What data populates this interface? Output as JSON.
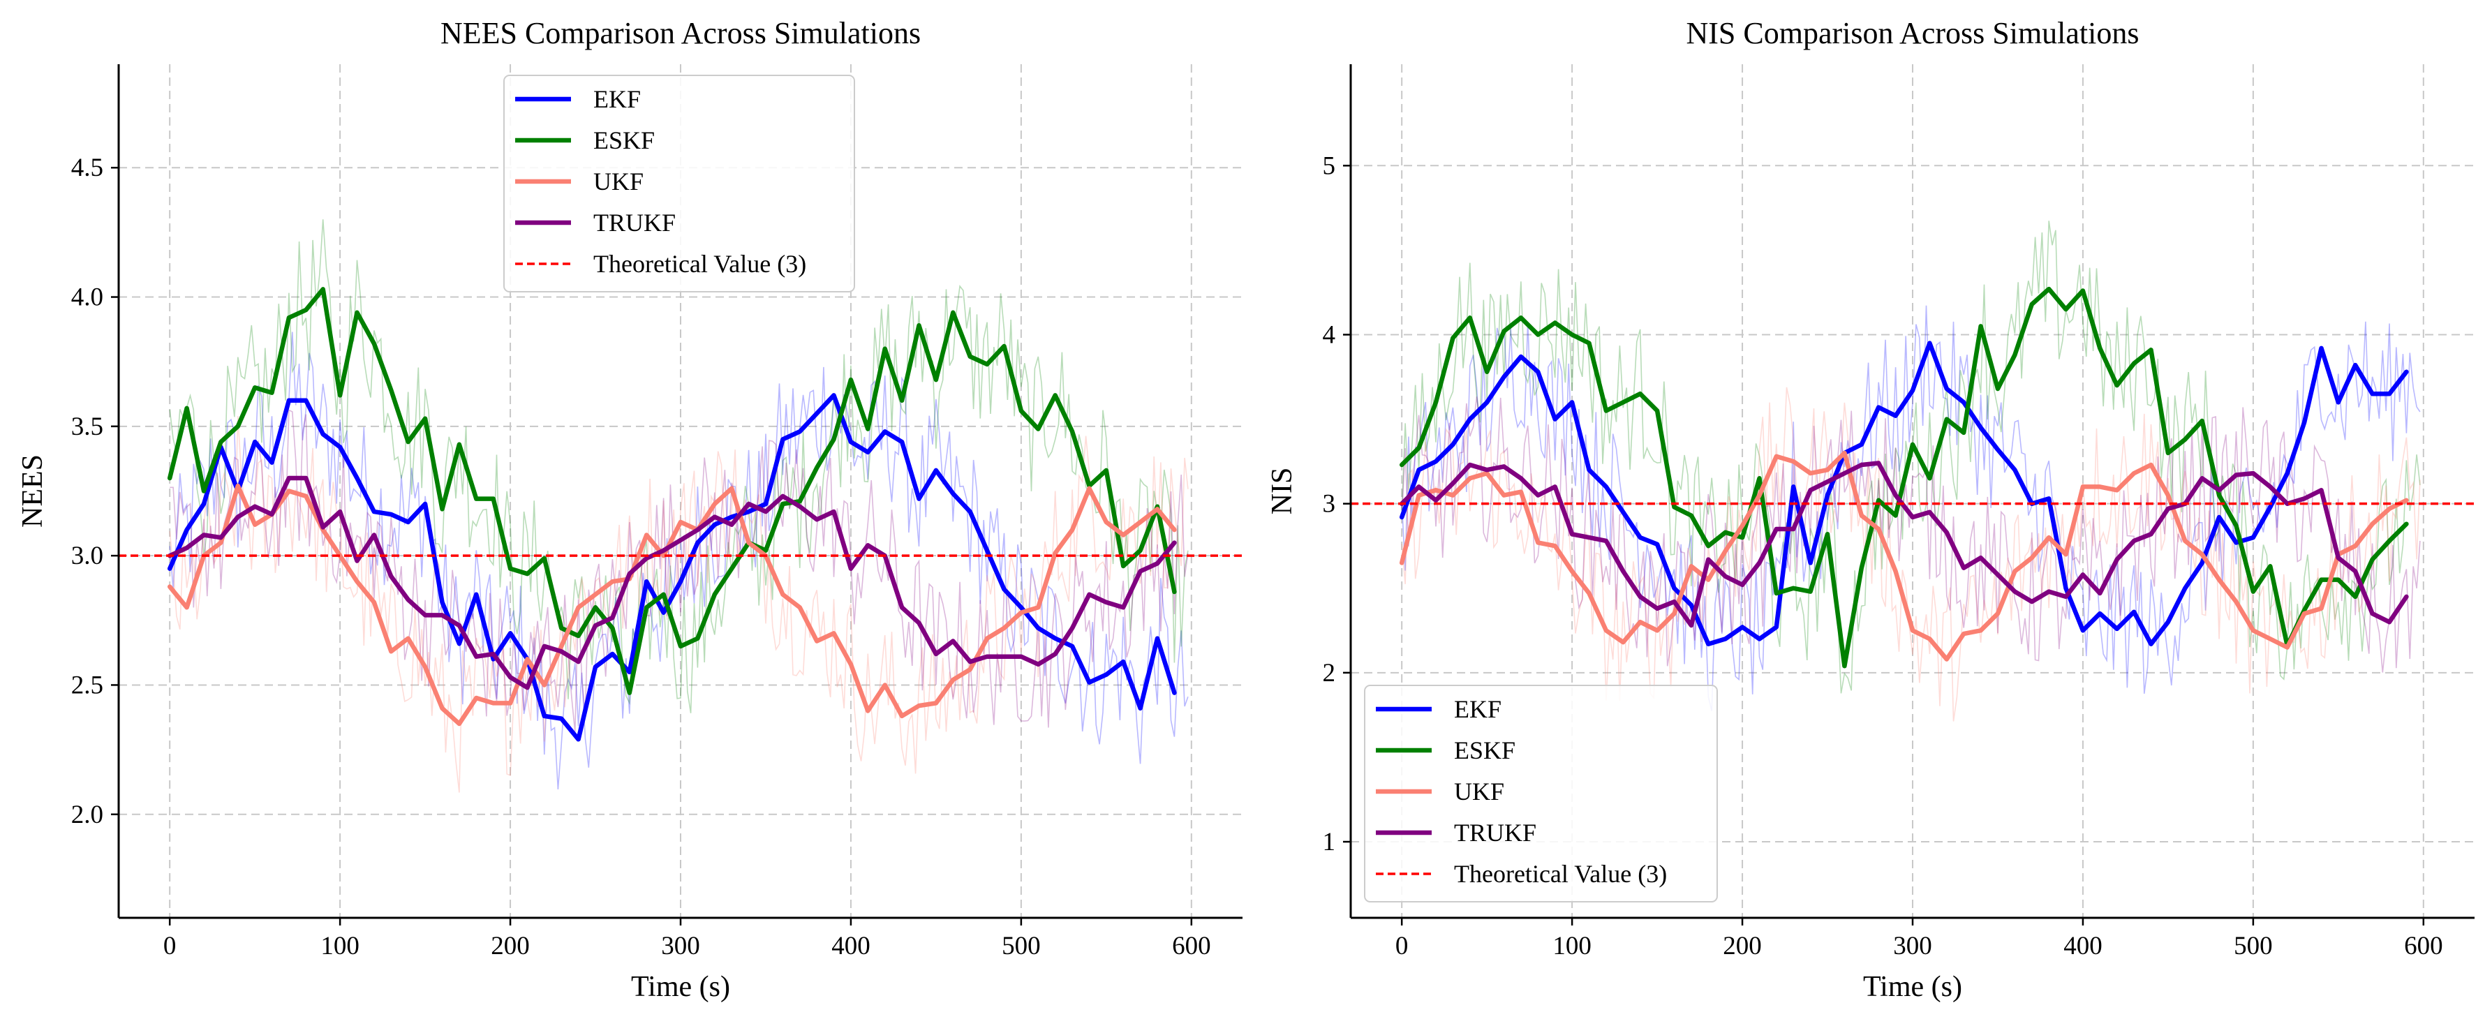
{
  "chart_data": [
    {
      "type": "line",
      "title": "NEES Comparison Across Simulations",
      "xlabel": "Time (s)",
      "ylabel": "NEES",
      "xlim": [
        -30,
        630
      ],
      "ylim": [
        1.6,
        4.9
      ],
      "xticks": [
        0,
        100,
        200,
        300,
        400,
        500,
        600
      ],
      "yticks": [
        2.0,
        2.5,
        3.0,
        3.5,
        4.0,
        4.5
      ],
      "ytick_format": 1,
      "grid": true,
      "legend_position": "top-center",
      "x": [
        0,
        10,
        20,
        30,
        40,
        50,
        60,
        70,
        80,
        90,
        100,
        110,
        120,
        130,
        140,
        150,
        160,
        170,
        180,
        190,
        200,
        210,
        220,
        230,
        240,
        250,
        260,
        270,
        280,
        290,
        300,
        310,
        320,
        330,
        340,
        350,
        360,
        370,
        380,
        390,
        400,
        410,
        420,
        430,
        440,
        450,
        460,
        470,
        480,
        490,
        500,
        510,
        520,
        530,
        540,
        550,
        560,
        570,
        580,
        590
      ],
      "series": [
        {
          "name": "EKF",
          "color": "#0000ff",
          "values": [
            2.95,
            3.1,
            3.2,
            3.42,
            3.25,
            3.44,
            3.36,
            3.6,
            3.6,
            3.47,
            3.42,
            3.3,
            3.17,
            3.16,
            3.13,
            3.2,
            2.82,
            2.66,
            2.85,
            2.6,
            2.7,
            2.6,
            2.38,
            2.37,
            2.29,
            2.57,
            2.62,
            2.55,
            2.9,
            2.78,
            2.9,
            3.05,
            3.12,
            3.15,
            3.17,
            3.2,
            3.45,
            3.48,
            3.55,
            3.62,
            3.44,
            3.4,
            3.48,
            3.44,
            3.22,
            3.33,
            3.24,
            3.17,
            3.02,
            2.87,
            2.8,
            2.72,
            2.68,
            2.65,
            2.51,
            2.54,
            2.59,
            2.41,
            2.68,
            2.47
          ]
        },
        {
          "name": "ESKF",
          "color": "#008000",
          "values": [
            3.3,
            3.57,
            3.25,
            3.44,
            3.5,
            3.65,
            3.63,
            3.92,
            3.95,
            4.03,
            3.62,
            3.94,
            3.82,
            3.64,
            3.44,
            3.53,
            3.18,
            3.43,
            3.22,
            3.22,
            2.95,
            2.93,
            2.99,
            2.72,
            2.69,
            2.8,
            2.72,
            2.47,
            2.8,
            2.85,
            2.65,
            2.68,
            2.85,
            2.95,
            3.05,
            3.02,
            3.2,
            3.21,
            3.34,
            3.45,
            3.68,
            3.49,
            3.8,
            3.6,
            3.89,
            3.68,
            3.94,
            3.77,
            3.74,
            3.81,
            3.56,
            3.49,
            3.62,
            3.48,
            3.27,
            3.33,
            2.96,
            3.02,
            3.19,
            2.86
          ]
        },
        {
          "name": "UKF",
          "color": "#fa8072",
          "values": [
            2.88,
            2.8,
            3.0,
            3.05,
            3.27,
            3.12,
            3.16,
            3.25,
            3.23,
            3.1,
            3.0,
            2.9,
            2.82,
            2.63,
            2.68,
            2.57,
            2.41,
            2.35,
            2.45,
            2.43,
            2.43,
            2.6,
            2.5,
            2.65,
            2.8,
            2.85,
            2.9,
            2.91,
            3.08,
            3.0,
            3.13,
            3.1,
            3.2,
            3.26,
            3.05,
            3.0,
            2.85,
            2.8,
            2.67,
            2.7,
            2.58,
            2.4,
            2.5,
            2.38,
            2.42,
            2.43,
            2.52,
            2.56,
            2.68,
            2.72,
            2.78,
            2.8,
            3.01,
            3.1,
            3.26,
            3.13,
            3.08,
            3.13,
            3.18,
            3.1
          ]
        },
        {
          "name": "TRUKF",
          "color": "#800080",
          "values": [
            3.0,
            3.03,
            3.08,
            3.07,
            3.15,
            3.19,
            3.16,
            3.3,
            3.3,
            3.11,
            3.17,
            2.98,
            3.08,
            2.92,
            2.83,
            2.77,
            2.77,
            2.73,
            2.61,
            2.62,
            2.53,
            2.49,
            2.65,
            2.63,
            2.59,
            2.73,
            2.76,
            2.93,
            2.99,
            3.02,
            3.06,
            3.1,
            3.15,
            3.12,
            3.2,
            3.17,
            3.23,
            3.19,
            3.14,
            3.17,
            2.95,
            3.04,
            3.0,
            2.8,
            2.74,
            2.62,
            2.67,
            2.59,
            2.61,
            2.61,
            2.61,
            2.58,
            2.62,
            2.72,
            2.85,
            2.82,
            2.8,
            2.94,
            2.97,
            3.05
          ]
        }
      ],
      "reference_line": {
        "name": "Theoretical Value (3)",
        "y": 3.0,
        "color": "#ff0000"
      }
    },
    {
      "type": "line",
      "title": "NIS Comparison Across Simulations",
      "xlabel": "Time (s)",
      "ylabel": "NIS",
      "xlim": [
        -30,
        630
      ],
      "ylim": [
        0.55,
        5.6
      ],
      "xticks": [
        0,
        100,
        200,
        300,
        400,
        500,
        600
      ],
      "yticks": [
        1,
        2,
        3,
        4,
        5
      ],
      "ytick_format": 0,
      "grid": true,
      "legend_position": "bottom-left",
      "x": [
        0,
        10,
        20,
        30,
        40,
        50,
        60,
        70,
        80,
        90,
        100,
        110,
        120,
        130,
        140,
        150,
        160,
        170,
        180,
        190,
        200,
        210,
        220,
        230,
        240,
        250,
        260,
        270,
        280,
        290,
        300,
        310,
        320,
        330,
        340,
        350,
        360,
        370,
        380,
        390,
        400,
        410,
        420,
        430,
        440,
        450,
        460,
        470,
        480,
        490,
        500,
        510,
        520,
        530,
        540,
        550,
        560,
        570,
        580,
        590
      ],
      "series": [
        {
          "name": "EKF",
          "color": "#0000ff",
          "values": [
            2.92,
            3.2,
            3.25,
            3.35,
            3.5,
            3.6,
            3.75,
            3.87,
            3.78,
            3.5,
            3.6,
            3.2,
            3.1,
            2.95,
            2.8,
            2.76,
            2.5,
            2.4,
            2.17,
            2.2,
            2.27,
            2.2,
            2.27,
            3.1,
            2.65,
            3.05,
            3.3,
            3.35,
            3.57,
            3.52,
            3.67,
            3.95,
            3.68,
            3.6,
            3.45,
            3.32,
            3.2,
            3.0,
            3.03,
            2.5,
            2.25,
            2.35,
            2.26,
            2.36,
            2.17,
            2.3,
            2.5,
            2.65,
            2.92,
            2.77,
            2.8,
            2.98,
            3.18,
            3.48,
            3.92,
            3.6,
            3.82,
            3.65,
            3.65,
            3.78
          ]
        },
        {
          "name": "ESKF",
          "color": "#008000",
          "values": [
            3.23,
            3.33,
            3.6,
            3.98,
            4.1,
            3.78,
            4.02,
            4.1,
            4.0,
            4.07,
            4.0,
            3.95,
            3.55,
            3.6,
            3.65,
            3.55,
            2.98,
            2.93,
            2.75,
            2.83,
            2.8,
            3.15,
            2.47,
            2.5,
            2.48,
            2.82,
            2.04,
            2.62,
            3.02,
            2.93,
            3.35,
            3.15,
            3.5,
            3.42,
            4.05,
            3.68,
            3.88,
            4.18,
            4.27,
            4.15,
            4.26,
            3.92,
            3.7,
            3.83,
            3.91,
            3.3,
            3.38,
            3.49,
            3.05,
            2.87,
            2.48,
            2.63,
            2.16,
            2.37,
            2.55,
            2.55,
            2.45,
            2.67,
            2.78,
            2.88
          ]
        },
        {
          "name": "UKF",
          "color": "#fa8072",
          "values": [
            2.65,
            3.05,
            3.08,
            3.05,
            3.15,
            3.18,
            3.05,
            3.07,
            2.77,
            2.75,
            2.6,
            2.47,
            2.25,
            2.18,
            2.3,
            2.25,
            2.35,
            2.63,
            2.55,
            2.72,
            2.87,
            3.05,
            3.28,
            3.25,
            3.18,
            3.2,
            3.3,
            2.93,
            2.85,
            2.6,
            2.25,
            2.2,
            2.08,
            2.23,
            2.25,
            2.35,
            2.6,
            2.68,
            2.8,
            2.7,
            3.1,
            3.1,
            3.08,
            3.18,
            3.23,
            3.05,
            2.78,
            2.7,
            2.55,
            2.42,
            2.25,
            2.2,
            2.15,
            2.35,
            2.38,
            2.7,
            2.75,
            2.88,
            2.97,
            3.02
          ]
        },
        {
          "name": "TRUKF",
          "color": "#800080",
          "values": [
            3.0,
            3.1,
            3.02,
            3.12,
            3.23,
            3.2,
            3.22,
            3.15,
            3.05,
            3.1,
            2.82,
            2.8,
            2.78,
            2.6,
            2.45,
            2.38,
            2.42,
            2.28,
            2.67,
            2.57,
            2.52,
            2.65,
            2.85,
            2.85,
            3.08,
            3.13,
            3.18,
            3.23,
            3.24,
            3.05,
            2.92,
            2.95,
            2.83,
            2.62,
            2.68,
            2.58,
            2.48,
            2.42,
            2.48,
            2.45,
            2.58,
            2.47,
            2.67,
            2.78,
            2.82,
            2.97,
            3.0,
            3.15,
            3.08,
            3.17,
            3.18,
            3.1,
            3.0,
            3.03,
            3.08,
            2.68,
            2.6,
            2.35,
            2.3,
            2.45
          ]
        }
      ],
      "reference_line": {
        "name": "Theoretical Value (3)",
        "y": 3.0,
        "color": "#ff0000"
      }
    }
  ]
}
